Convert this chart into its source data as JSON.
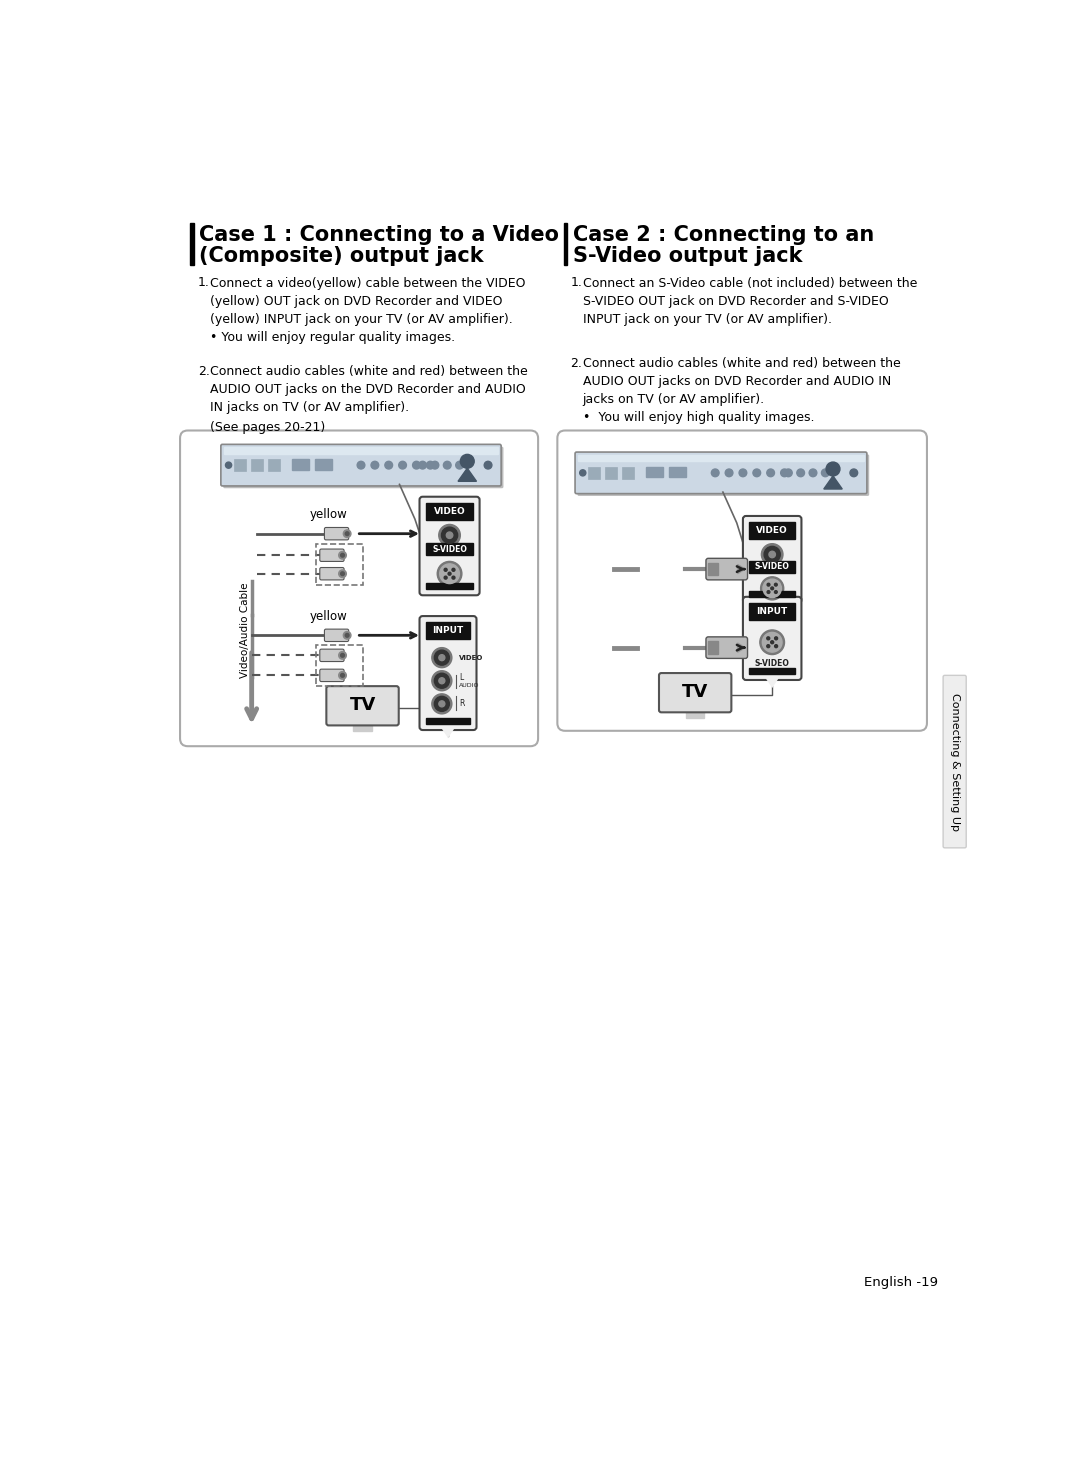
{
  "bg_color": "#ffffff",
  "case1_title_line1": "Case 1 : Connecting to a Video",
  "case1_title_line2": "(Composite) output jack",
  "case2_title_line1": "Case 2 : Connecting to an",
  "case2_title_line2": "S-Video output jack",
  "case1_body1_num": "1.",
  "case1_body1": "Connect a video(yellow) cable between the VIDEO\n(yellow) OUT jack on DVD Recorder and VIDEO\n(yellow) INPUT jack on your TV (or AV amplifier).\n• You will enjoy regular quality images.",
  "case1_body2_num": "2.",
  "case1_body2": "Connect audio cables (white and red) between the\nAUDIO OUT jacks on the DVD Recorder and AUDIO\nIN jacks on TV (or AV amplifier).",
  "case1_body3": "(See pages 20-21)",
  "case2_body1_num": "1.",
  "case2_body1": "Connect an S-Video cable (not included) between the\nS-VIDEO OUT jack on DVD Recorder and S-VIDEO\nINPUT jack on your TV (or AV amplifier).",
  "case2_body2_num": "2.",
  "case2_body2": "Connect audio cables (white and red) between the\nAUDIO OUT jacks on DVD Recorder and AUDIO IN\njacks on TV (or AV amplifier).\n•  You will enjoy high quality images.",
  "sidebar_text": "Connecting & Setting Up",
  "footer_text": "English -19",
  "title_bar_color": "#000000",
  "text_color": "#000000",
  "box_border": "#999999",
  "panel_dark": "#111111",
  "panel_mid": "#444444",
  "panel_light": "#888888"
}
